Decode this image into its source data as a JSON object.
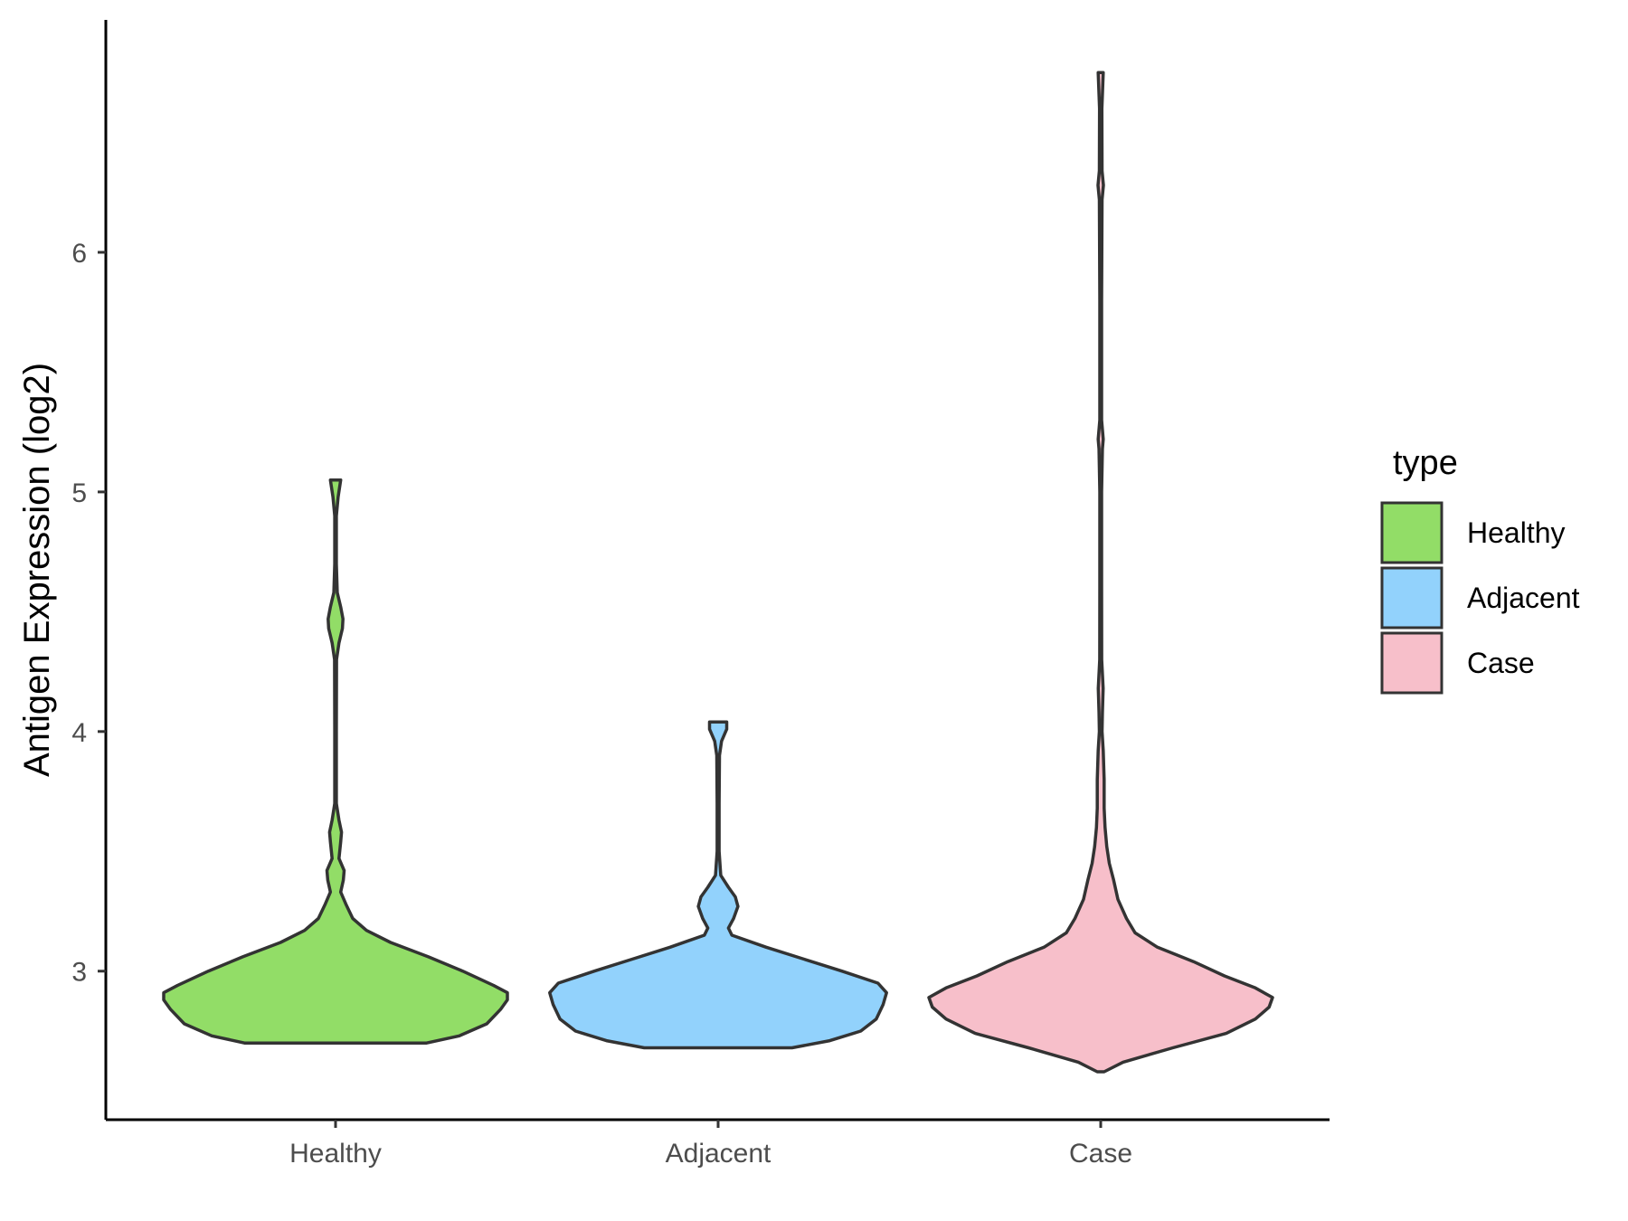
{
  "chart_data": {
    "type": "violin",
    "ylabel": "Antigen Expression (log2)",
    "xlabel": "",
    "categories": [
      "Healthy",
      "Adjacent",
      "Case"
    ],
    "y_ticks": [
      3,
      4,
      5,
      6
    ],
    "ylim": [
      2.38,
      6.97
    ],
    "grid": false,
    "legend": {
      "title": "type",
      "position": "right",
      "entries": [
        "Healthy",
        "Adjacent",
        "Case"
      ]
    },
    "colors": {
      "Healthy": "#92dd67",
      "Adjacent": "#92d2fc",
      "Case": "#f7bfca",
      "outline": "#333333"
    },
    "series": [
      {
        "name": "Healthy",
        "min": 2.7,
        "max": 5.05,
        "density": [
          [
            2.7,
            0.53
          ],
          [
            2.73,
            0.72
          ],
          [
            2.78,
            0.88
          ],
          [
            2.84,
            0.96
          ],
          [
            2.88,
            1.0
          ],
          [
            2.91,
            1.0
          ],
          [
            2.94,
            0.92
          ],
          [
            3.0,
            0.74
          ],
          [
            3.06,
            0.54
          ],
          [
            3.12,
            0.32
          ],
          [
            3.17,
            0.18
          ],
          [
            3.22,
            0.1
          ],
          [
            3.28,
            0.06
          ],
          [
            3.33,
            0.03
          ],
          [
            3.38,
            0.045
          ],
          [
            3.42,
            0.05
          ],
          [
            3.47,
            0.02
          ],
          [
            3.54,
            0.03
          ],
          [
            3.58,
            0.035
          ],
          [
            3.63,
            0.02
          ],
          [
            3.7,
            0.005
          ],
          [
            4.0,
            0.005
          ],
          [
            4.3,
            0.006
          ],
          [
            4.37,
            0.02
          ],
          [
            4.43,
            0.04
          ],
          [
            4.47,
            0.043
          ],
          [
            4.52,
            0.03
          ],
          [
            4.58,
            0.01
          ],
          [
            4.7,
            0.005
          ],
          [
            4.9,
            0.005
          ],
          [
            4.98,
            0.015
          ],
          [
            5.05,
            0.03
          ]
        ]
      },
      {
        "name": "Adjacent",
        "min": 2.68,
        "max": 4.04,
        "density": [
          [
            2.68,
            0.43
          ],
          [
            2.71,
            0.65
          ],
          [
            2.75,
            0.83
          ],
          [
            2.8,
            0.92
          ],
          [
            2.86,
            0.96
          ],
          [
            2.91,
            0.98
          ],
          [
            2.95,
            0.93
          ],
          [
            3.0,
            0.72
          ],
          [
            3.05,
            0.5
          ],
          [
            3.1,
            0.28
          ],
          [
            3.15,
            0.08
          ],
          [
            3.18,
            0.06
          ],
          [
            3.22,
            0.09
          ],
          [
            3.27,
            0.115
          ],
          [
            3.31,
            0.1
          ],
          [
            3.35,
            0.06
          ],
          [
            3.4,
            0.015
          ],
          [
            3.5,
            0.006
          ],
          [
            3.7,
            0.006
          ],
          [
            3.9,
            0.008
          ],
          [
            3.96,
            0.02
          ],
          [
            4.01,
            0.05
          ],
          [
            4.04,
            0.05
          ]
        ]
      },
      {
        "name": "Case",
        "min": 2.58,
        "max": 6.75,
        "density": [
          [
            2.58,
            0.02
          ],
          [
            2.62,
            0.13
          ],
          [
            2.68,
            0.42
          ],
          [
            2.74,
            0.73
          ],
          [
            2.8,
            0.9
          ],
          [
            2.85,
            0.98
          ],
          [
            2.89,
            1.0
          ],
          [
            2.93,
            0.9
          ],
          [
            2.98,
            0.72
          ],
          [
            3.04,
            0.54
          ],
          [
            3.1,
            0.33
          ],
          [
            3.16,
            0.2
          ],
          [
            3.22,
            0.15
          ],
          [
            3.3,
            0.1
          ],
          [
            3.38,
            0.075
          ],
          [
            3.45,
            0.05
          ],
          [
            3.52,
            0.035
          ],
          [
            3.6,
            0.025
          ],
          [
            3.68,
            0.02
          ],
          [
            3.8,
            0.02
          ],
          [
            3.92,
            0.015
          ],
          [
            4.0,
            0.008
          ],
          [
            4.08,
            0.01
          ],
          [
            4.18,
            0.014
          ],
          [
            4.3,
            0.006
          ],
          [
            4.6,
            0.005
          ],
          [
            5.0,
            0.005
          ],
          [
            5.18,
            0.01
          ],
          [
            5.22,
            0.015
          ],
          [
            5.3,
            0.005
          ],
          [
            5.8,
            0.005
          ],
          [
            6.22,
            0.008
          ],
          [
            6.28,
            0.016
          ],
          [
            6.34,
            0.008
          ],
          [
            6.6,
            0.007
          ],
          [
            6.75,
            0.015
          ]
        ]
      }
    ]
  }
}
